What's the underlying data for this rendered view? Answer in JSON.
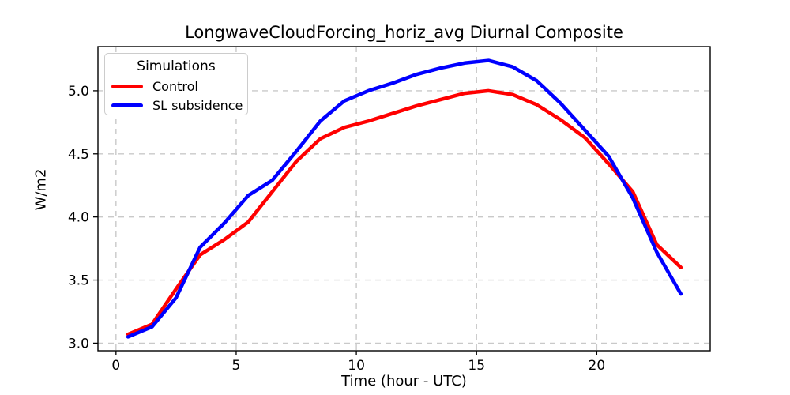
{
  "figure": {
    "background": "#ffffff"
  },
  "chart_data": {
    "type": "line",
    "title": "LongwaveCloudForcing_horiz_avg Diurnal Composite",
    "xlabel": "Time (hour - UTC)",
    "ylabel": "W/m2",
    "x": [
      0.5,
      1.5,
      2.5,
      3.5,
      4.5,
      5.5,
      6.5,
      7.5,
      8.5,
      9.5,
      10.5,
      11.5,
      12.5,
      13.5,
      14.5,
      15.5,
      16.5,
      17.5,
      18.5,
      19.5,
      20.5,
      21.5,
      22.5,
      23.5
    ],
    "series": [
      {
        "name": "Control",
        "color": "#ff0000",
        "values": [
          3.07,
          3.15,
          3.43,
          3.7,
          3.82,
          3.96,
          4.2,
          4.44,
          4.62,
          4.71,
          4.76,
          4.82,
          4.88,
          4.93,
          4.98,
          5.0,
          4.97,
          4.89,
          4.77,
          4.63,
          4.42,
          4.2,
          3.78,
          3.6
        ]
      },
      {
        "name": "SL subsidence",
        "color": "#0000ff",
        "values": [
          3.05,
          3.13,
          3.36,
          3.76,
          3.95,
          4.17,
          4.29,
          4.52,
          4.76,
          4.92,
          5.0,
          5.06,
          5.13,
          5.18,
          5.22,
          5.24,
          5.19,
          5.08,
          4.9,
          4.69,
          4.48,
          4.15,
          3.72,
          3.39
        ]
      }
    ],
    "xlim": [
      -0.75,
      24.72
    ],
    "ylim": [
      2.94,
      5.35
    ],
    "xticks": [
      0,
      5,
      10,
      15,
      20
    ],
    "yticks": [
      3.0,
      3.5,
      4.0,
      4.5,
      5.0
    ],
    "ytick_labels": [
      "3.0",
      "3.5",
      "4.0",
      "4.5",
      "5.0"
    ],
    "grid": "dashed",
    "grid_color": "#c9c9c9",
    "legend": {
      "title": "Simulations",
      "position": "upper left"
    }
  }
}
